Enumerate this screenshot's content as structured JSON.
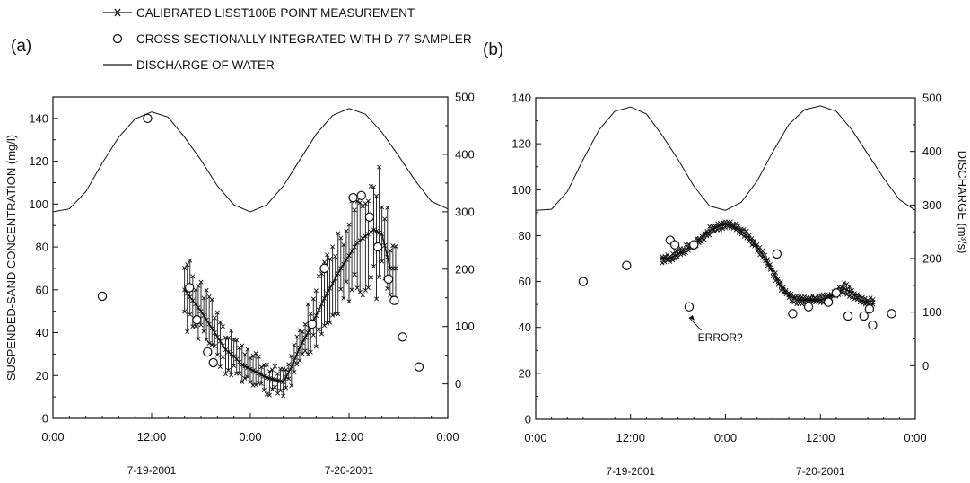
{
  "legend": [
    {
      "marker": "line-x",
      "label": "CALIBRATED LISST100B POINT MEASUREMENT"
    },
    {
      "marker": "circle",
      "label": "CROSS-SECTIONALLY INTEGRATED WITH D-77 SAMPLER"
    },
    {
      "marker": "line",
      "label": "DISCHARGE OF WATER"
    }
  ],
  "chart_data": [
    {
      "panel_label": "(a)",
      "type": "line",
      "x_unit": "hours from 7-19-2001 0:00",
      "x_tick_labels": [
        "0:00",
        "12:00",
        "0:00",
        "12:00",
        "0:00"
      ],
      "x_ticks_hours": [
        0,
        12,
        24,
        36,
        48
      ],
      "date_labels": [
        {
          "hour": 12,
          "text": "7-19-2001"
        },
        {
          "hour": 36,
          "text": "7-20-2001"
        }
      ],
      "ylabel": "SUSPENDED-SAND CONCENTRATION (mg/l)",
      "ylim": [
        0,
        150
      ],
      "y_ticks": [
        0,
        20,
        40,
        60,
        80,
        100,
        120,
        140
      ],
      "y2label": "",
      "y2lim": [
        -60,
        500
      ],
      "y2_ticks": [
        0,
        100,
        200,
        300,
        400,
        500
      ],
      "grid": false,
      "series": [
        {
          "name": "CALIBRATED LISST100B POINT MEASUREMENT",
          "axis": "left",
          "style": "line-x",
          "x": [
            16,
            17,
            18,
            19,
            20,
            21,
            22,
            23,
            24,
            25,
            26,
            27,
            28,
            29,
            30,
            31,
            32,
            33,
            34,
            35,
            36,
            37,
            38,
            39,
            40,
            41
          ],
          "y": [
            60,
            55,
            50,
            44,
            38,
            32,
            29,
            25,
            23,
            21,
            19,
            18,
            17,
            24,
            33,
            40,
            48,
            56,
            63,
            70,
            76,
            82,
            85,
            88,
            86,
            70
          ],
          "spread": [
            20,
            16,
            15,
            14,
            12,
            12,
            10,
            9,
            9,
            8,
            8,
            7,
            7,
            9,
            12,
            14,
            16,
            18,
            20,
            22,
            24,
            28,
            30,
            32,
            26,
            18
          ]
        },
        {
          "name": "CROSS-SECTIONALLY INTEGRATED WITH D-77 SAMPLER",
          "axis": "left",
          "style": "circle",
          "x": [
            6,
            11.5,
            16.6,
            17.5,
            18.8,
            19.5,
            31.5,
            33,
            36.5,
            37.5,
            38.5,
            39.5,
            40.8,
            41.5,
            42.5,
            44.5
          ],
          "y": [
            57,
            140,
            61,
            46,
            31,
            26,
            44,
            70,
            103,
            104,
            94,
            80,
            65,
            55,
            38,
            24
          ]
        },
        {
          "name": "DISCHARGE OF WATER",
          "axis": "right",
          "style": "line",
          "x": [
            0,
            2,
            4,
            6,
            8,
            10,
            12,
            14,
            16,
            18,
            20,
            22,
            24,
            26,
            28,
            30,
            32,
            34,
            36,
            38,
            40,
            42,
            44,
            46,
            48
          ],
          "y": [
            300,
            305,
            335,
            385,
            430,
            462,
            474,
            465,
            430,
            390,
            345,
            312,
            300,
            312,
            345,
            390,
            435,
            468,
            480,
            470,
            438,
            398,
            355,
            318,
            305
          ]
        }
      ]
    },
    {
      "panel_label": "(b)",
      "type": "line",
      "x_unit": "hours from 7-19-2001 0:00",
      "x_tick_labels": [
        "0:00",
        "12:00",
        "0:00",
        "12:00",
        "0:00"
      ],
      "x_ticks_hours": [
        0,
        12,
        24,
        36,
        48
      ],
      "date_labels": [
        {
          "hour": 12,
          "text": "7-19-2001"
        },
        {
          "hour": 36,
          "text": "7-20-2001"
        }
      ],
      "ylabel": "",
      "ylim": [
        0,
        140
      ],
      "y_ticks": [
        0,
        20,
        40,
        60,
        80,
        100,
        120,
        140
      ],
      "y2label": "DISCHARGE (m³/s)",
      "y2lim": [
        -100,
        500
      ],
      "y2_ticks": [
        0,
        100,
        200,
        300,
        400,
        500
      ],
      "grid": false,
      "annotation": {
        "text": "ERROR?",
        "x": 20.5,
        "y": 34,
        "target_x": 19.4,
        "target_y": 47
      },
      "series": [
        {
          "name": "CALIBRATED LISST100B POINT MEASUREMENT",
          "axis": "left",
          "style": "line-x",
          "x": [
            16,
            17,
            18,
            19,
            20,
            21,
            22,
            23,
            24,
            25,
            26,
            27,
            28,
            29,
            30,
            31,
            32,
            33,
            34,
            35,
            36,
            37,
            38,
            39,
            40,
            41,
            42
          ],
          "y": [
            70,
            70,
            72,
            74,
            76,
            79,
            82,
            84,
            85,
            84,
            82,
            79,
            75,
            70,
            64,
            58,
            54,
            52,
            52,
            52,
            52,
            53,
            55,
            57,
            55,
            52,
            51
          ],
          "spread": [
            2,
            2,
            2,
            2,
            2,
            2,
            2,
            2,
            2,
            2,
            2,
            2,
            2,
            2,
            2,
            2,
            2,
            2,
            2,
            2,
            2,
            2,
            2,
            3,
            2,
            2,
            2
          ]
        },
        {
          "name": "CROSS-SECTIONALLY INTEGRATED WITH D-77 SAMPLER",
          "axis": "left",
          "style": "circle",
          "x": [
            6,
            11.5,
            17.0,
            17.6,
            19.4,
            20.0,
            30.5,
            32.5,
            34.5,
            37.0,
            38.0,
            39.5,
            41.5,
            42.2,
            42.6,
            45.0
          ],
          "y": [
            60,
            67,
            78,
            76,
            49,
            76,
            72,
            46,
            49,
            51,
            55,
            45,
            45,
            48,
            41,
            46
          ]
        },
        {
          "name": "DISCHARGE OF WATER",
          "axis": "right",
          "style": "line",
          "x": [
            0,
            2,
            4,
            6,
            8,
            10,
            12,
            14,
            16,
            18,
            20,
            22,
            24,
            26,
            28,
            30,
            32,
            34,
            36,
            38,
            40,
            42,
            44,
            46,
            48
          ],
          "y": [
            290,
            292,
            325,
            385,
            440,
            475,
            483,
            470,
            430,
            385,
            335,
            298,
            290,
            305,
            345,
            400,
            450,
            478,
            485,
            475,
            440,
            395,
            350,
            310,
            290
          ]
        }
      ]
    }
  ]
}
